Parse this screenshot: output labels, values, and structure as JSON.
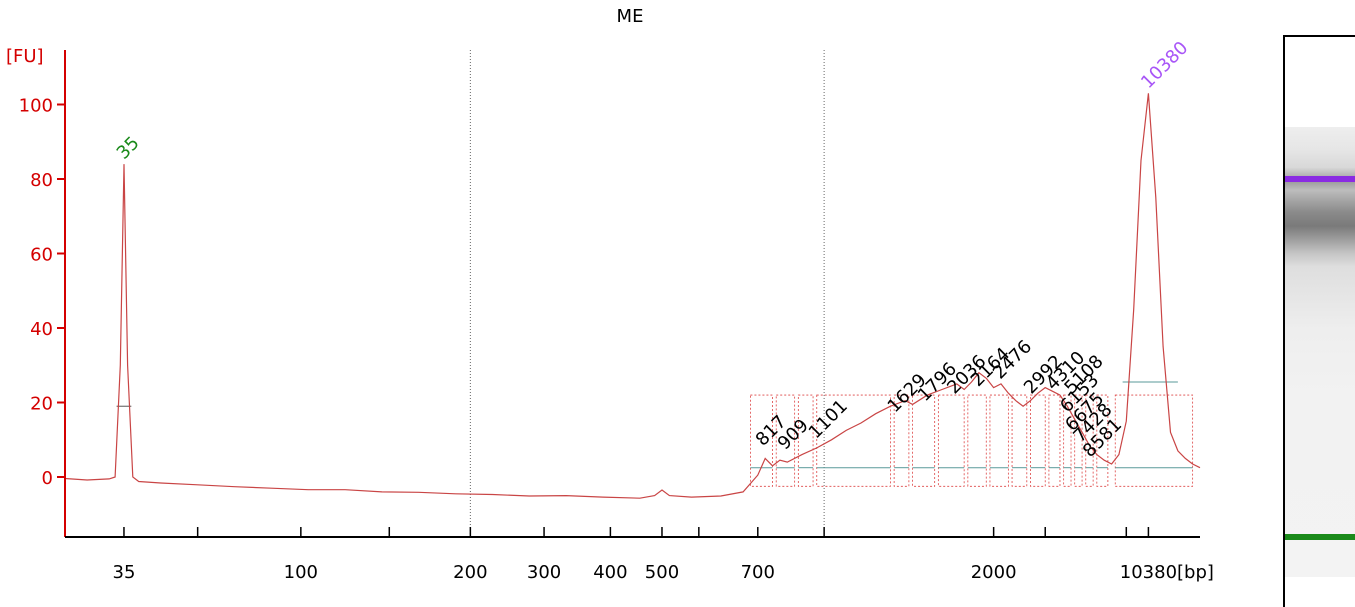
{
  "chart_data": {
    "type": "line",
    "title": "ME",
    "ylabel": "[FU]",
    "xlabel": "[bp]",
    "ylim": [
      -18,
      113
    ],
    "yticks": [
      0,
      20,
      40,
      60,
      80,
      100
    ],
    "ytick_labels": [
      "0",
      "20",
      "40",
      "60",
      "80",
      "100"
    ],
    "xticks": [
      {
        "label": "35",
        "t": 35
      },
      {
        "label": "",
        "t": 45
      },
      {
        "label": "100",
        "t": 59
      },
      {
        "label": "",
        "t": 71
      },
      {
        "label": "200",
        "t": 82
      },
      {
        "label": "300",
        "t": 92
      },
      {
        "label": "400",
        "t": 101
      },
      {
        "label": "500",
        "t": 108
      },
      {
        "label": "",
        "t": 113
      },
      {
        "label": "700",
        "t": 121
      },
      {
        "label": "",
        "t": 130
      },
      {
        "label": "2000",
        "t": 153
      },
      {
        "label": "",
        "t": 160
      },
      {
        "label": "",
        "t": 171
      },
      {
        "label": "10380",
        "t": 174
      }
    ],
    "t_range": [
      27,
      181
    ],
    "vlines_t": [
      82,
      130
    ],
    "peak_labels": [
      {
        "label": "35",
        "t": 35,
        "y": 84,
        "color": "#1a8a1a"
      },
      {
        "label": "10380",
        "t": 174,
        "y": 103,
        "color": "#a855f7"
      },
      {
        "label": "817",
        "t": 121.7,
        "y": 7
      },
      {
        "label": "909",
        "t": 124.7,
        "y": 6
      },
      {
        "label": "1101",
        "t": 128.9,
        "y": 9
      },
      {
        "label": "1629",
        "t": 139.6,
        "y": 16
      },
      {
        "label": "1796",
        "t": 143.7,
        "y": 19
      },
      {
        "label": "2036",
        "t": 147.7,
        "y": 21
      },
      {
        "label": "2164",
        "t": 150.9,
        "y": 23
      },
      {
        "label": "2476",
        "t": 153.9,
        "y": 25
      },
      {
        "label": "2992",
        "t": 158.1,
        "y": 21
      },
      {
        "label": "4310",
        "t": 161.1,
        "y": 22
      },
      {
        "label": "5108",
        "t": 163.6,
        "y": 21
      },
      {
        "label": "6153",
        "t": 163.0,
        "y": 16
      },
      {
        "label": "6675",
        "t": 163.7,
        "y": 11
      },
      {
        "label": "7428",
        "t": 164.8,
        "y": 8
      },
      {
        "label": "8581",
        "t": 166.1,
        "y": 4
      }
    ],
    "series": [
      {
        "color": "#c94545",
        "points": [
          [
            27,
            -0.4
          ],
          [
            30,
            -0.8
          ],
          [
            33,
            -0.5
          ],
          [
            33.8,
            0
          ],
          [
            34.5,
            30
          ],
          [
            35,
            84
          ],
          [
            35.5,
            30
          ],
          [
            36.2,
            0
          ],
          [
            37,
            -1.2
          ],
          [
            40,
            -1.6
          ],
          [
            45,
            -2.1
          ],
          [
            50,
            -2.6
          ],
          [
            55,
            -3.0
          ],
          [
            60,
            -3.4
          ],
          [
            65,
            -3.4
          ],
          [
            70,
            -4.0
          ],
          [
            75,
            -4.1
          ],
          [
            80,
            -4.5
          ],
          [
            85,
            -4.7
          ],
          [
            90,
            -5.1
          ],
          [
            95,
            -5.0
          ],
          [
            100,
            -5.4
          ],
          [
            105,
            -5.7
          ],
          [
            107,
            -5.0
          ],
          [
            108,
            -3.5
          ],
          [
            109,
            -5.0
          ],
          [
            112,
            -5.4
          ],
          [
            116,
            -5.1
          ],
          [
            119,
            -4.0
          ],
          [
            121,
            0.5
          ],
          [
            122,
            5.0
          ],
          [
            123,
            3.0
          ],
          [
            124,
            4.5
          ],
          [
            125,
            4.0
          ],
          [
            127,
            6.0
          ],
          [
            129,
            7.8
          ],
          [
            131,
            10.0
          ],
          [
            133,
            12.5
          ],
          [
            135,
            14.5
          ],
          [
            137,
            17.0
          ],
          [
            139,
            19.0
          ],
          [
            141,
            20.5
          ],
          [
            142,
            19.5
          ],
          [
            144,
            22.0
          ],
          [
            146,
            23.5
          ],
          [
            148,
            25.0
          ],
          [
            149,
            23.5
          ],
          [
            150,
            25.5
          ],
          [
            151,
            28.0
          ],
          [
            152,
            26.5
          ],
          [
            153,
            24.0
          ],
          [
            154,
            25.0
          ],
          [
            155,
            22.5
          ],
          [
            156,
            20.5
          ],
          [
            157,
            19.0
          ],
          [
            158,
            20.5
          ],
          [
            159,
            22.5
          ],
          [
            160,
            24.0
          ],
          [
            161,
            23.0
          ],
          [
            162,
            22.0
          ],
          [
            163,
            19.0
          ],
          [
            164,
            15.5
          ],
          [
            165,
            12.0
          ],
          [
            166,
            8.5
          ],
          [
            167,
            6.0
          ],
          [
            168,
            4.5
          ],
          [
            169,
            3.5
          ],
          [
            170,
            6.0
          ],
          [
            171,
            15.0
          ],
          [
            172,
            45.0
          ],
          [
            173,
            85.0
          ],
          [
            174,
            103.0
          ],
          [
            175,
            75.0
          ],
          [
            176,
            35.0
          ],
          [
            177,
            12.0
          ],
          [
            178,
            7.0
          ],
          [
            179,
            5.0
          ],
          [
            180,
            3.5
          ],
          [
            181,
            2.5
          ]
        ]
      }
    ]
  },
  "gel": {
    "upper_marker_color": "#8a2be2",
    "lower_marker_color": "#1a8a1a"
  }
}
